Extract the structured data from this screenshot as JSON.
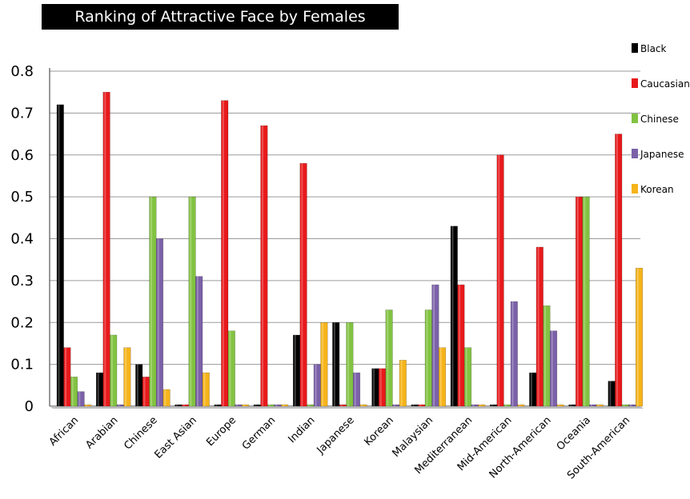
{
  "chart_data": {
    "type": "bar",
    "title": "Ranking of Attractive Face by Females",
    "xlabel": "",
    "ylabel": "",
    "ylim": [
      0,
      0.8
    ],
    "yticks": [
      "0",
      "0.1",
      "0.2",
      "0.3",
      "0.4",
      "0.5",
      "0.6",
      "0.7",
      "0.8"
    ],
    "grid": true,
    "legend_position": "right",
    "categories": [
      "African",
      "Arabian",
      "Chinese",
      "East Asian",
      "Europe",
      "German",
      "Indian",
      "Japanese",
      "Korean",
      "Malaysian",
      "Mediterranean",
      "Mid-American",
      "North-American",
      "Oceania",
      "South-American"
    ],
    "series": [
      {
        "name": "Black",
        "color": "#000000",
        "values": [
          0.72,
          0.08,
          0.1,
          0.0,
          0.0,
          0.0,
          0.17,
          0.2,
          0.09,
          0.0,
          0.43,
          0.0,
          0.08,
          0.0,
          0.06
        ]
      },
      {
        "name": "Caucasian",
        "color": "#e8191b",
        "values": [
          0.14,
          0.75,
          0.07,
          0.0,
          0.73,
          0.67,
          0.58,
          0.0,
          0.09,
          0.0,
          0.29,
          0.6,
          0.38,
          0.5,
          0.65
        ]
      },
      {
        "name": "Chinese",
        "color": "#82c341",
        "values": [
          0.07,
          0.17,
          0.5,
          0.5,
          0.18,
          0.0,
          0.0,
          0.2,
          0.23,
          0.23,
          0.14,
          0.0,
          0.24,
          0.5,
          0.0
        ]
      },
      {
        "name": "Japanese",
        "color": "#7b61a8",
        "values": [
          0.035,
          0.0,
          0.4,
          0.31,
          0.0,
          0.0,
          0.1,
          0.08,
          0.0,
          0.29,
          0.0,
          0.25,
          0.18,
          0.0,
          0.0
        ]
      },
      {
        "name": "Korean",
        "color": "#f6b41a",
        "values": [
          0.0,
          0.14,
          0.04,
          0.08,
          0.0,
          0.0,
          0.2,
          0.0,
          0.11,
          0.14,
          0.0,
          0.0,
          0.0,
          0.0,
          0.33
        ]
      }
    ]
  }
}
